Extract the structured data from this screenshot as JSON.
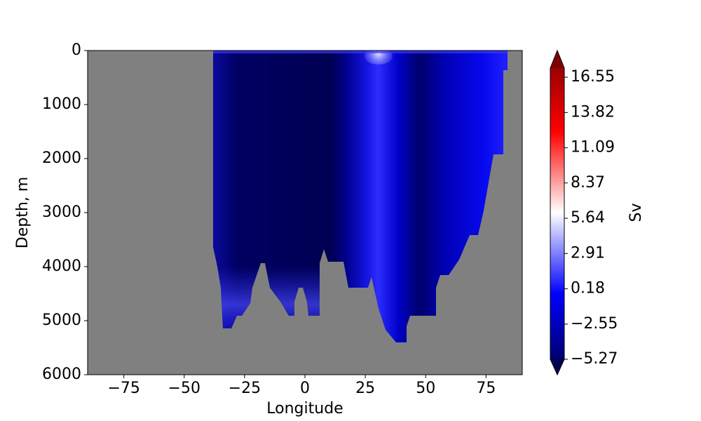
{
  "chart_data": {
    "type": "contour",
    "xlabel": "Longitude",
    "ylabel": "Depth, m",
    "xlim": [
      -90,
      90
    ],
    "xticks": [
      {
        "value": -75,
        "label": "−75"
      },
      {
        "value": -50,
        "label": "−50"
      },
      {
        "value": -25,
        "label": "−25"
      },
      0,
      25,
      50,
      75
    ],
    "ylim": [
      6000,
      0
    ],
    "yticks": [
      0,
      1000,
      2000,
      3000,
      4000,
      5000,
      6000
    ],
    "colorbar": {
      "label": "Sv",
      "colormap": "seismic",
      "lim": [
        -5.27,
        17.26
      ],
      "ticks": [
        {
          "value": -5.27,
          "label": "−5.27"
        },
        {
          "value": -2.55,
          "label": "−2.55"
        },
        0.18,
        2.91,
        5.64,
        8.37,
        11.09,
        13.82,
        16.55
      ]
    }
  }
}
